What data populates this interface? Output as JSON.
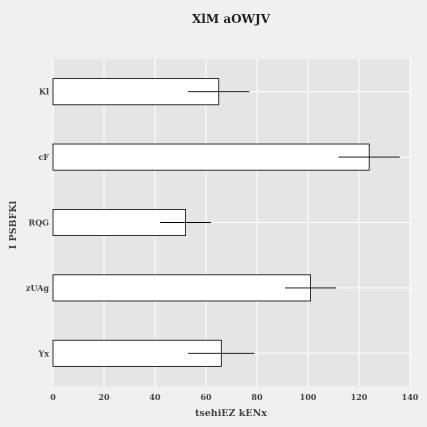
{
  "chart_data": {
    "type": "bar",
    "orientation": "horizontal",
    "title": "XlM aOWJV",
    "xlabel": "tsehiEZ kENx",
    "ylabel": "I PSBFKl",
    "categories": [
      "Yx",
      "zUAg",
      "RQG",
      "cF",
      "Kl"
    ],
    "values": [
      66,
      101,
      52,
      124,
      65
    ],
    "errors": [
      13,
      10,
      10,
      12,
      12
    ],
    "xlim": [
      0,
      140
    ],
    "xticks": [
      0,
      20,
      40,
      60,
      80,
      100,
      120,
      140
    ],
    "grid": true,
    "colors": {
      "figure_bg": "#f0f0f0",
      "plot_bg": "#e5e5e5",
      "grid": "#ffffff",
      "bar_fill": "#ffffff",
      "bar_edge": "#000000",
      "errorbar": "#000000",
      "text": "#444444"
    }
  }
}
